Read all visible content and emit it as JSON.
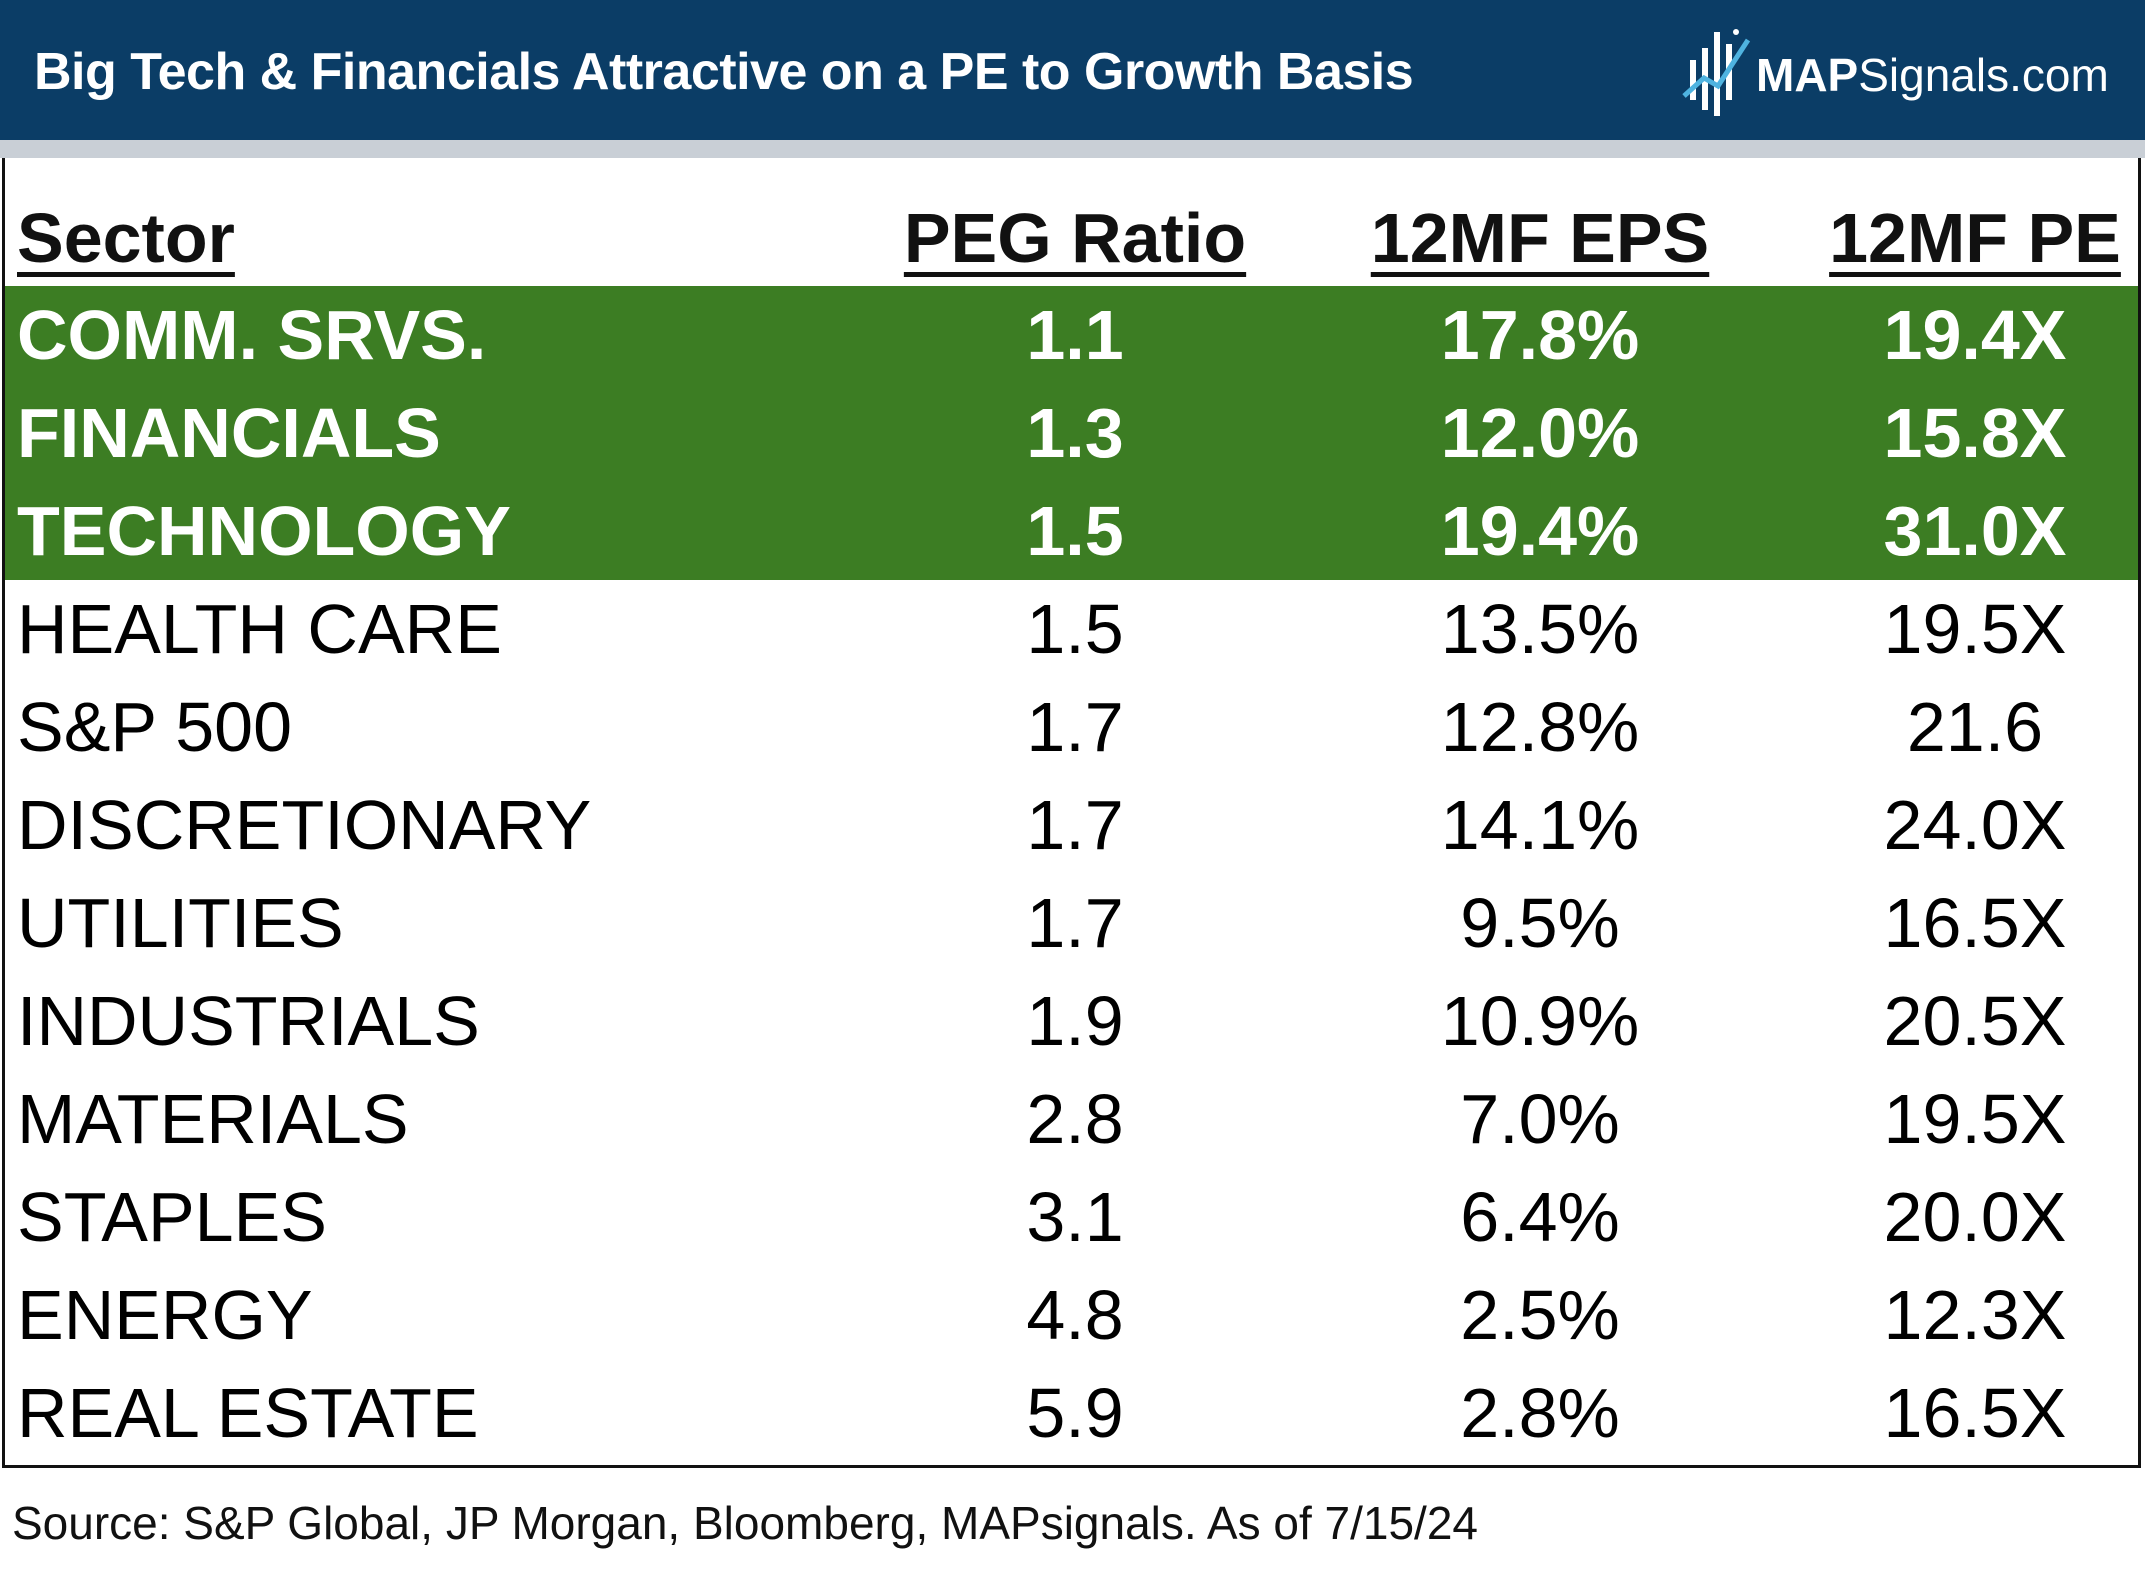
{
  "header": {
    "title": "Big Tech & Financials Attractive on a PE to Growth Basis",
    "logo_text_bold": "MAP",
    "logo_text_rest": "Signals.com",
    "bg_color": "#0b3d66"
  },
  "colors": {
    "highlight": "#3c7d23",
    "text": "#111111"
  },
  "chart_data": {
    "type": "table",
    "title": "Big Tech & Financials Attractive on a PE to Growth Basis",
    "columns": [
      "Sector",
      "PEG Ratio",
      "12MF EPS",
      "12MF PE"
    ],
    "rows": [
      {
        "sector": "COMM. SRVS.",
        "peg": "1.1",
        "eps": "17.8%",
        "pe": "19.4X",
        "highlight": true
      },
      {
        "sector": "FINANCIALS",
        "peg": "1.3",
        "eps": "12.0%",
        "pe": "15.8X",
        "highlight": true
      },
      {
        "sector": "TECHNOLOGY",
        "peg": "1.5",
        "eps": "19.4%",
        "pe": "31.0X",
        "highlight": true
      },
      {
        "sector": "HEALTH CARE",
        "peg": "1.5",
        "eps": "13.5%",
        "pe": "19.5X",
        "highlight": false
      },
      {
        "sector": "S&P 500",
        "peg": "1.7",
        "eps": "12.8%",
        "pe": "21.6",
        "highlight": false
      },
      {
        "sector": "DISCRETIONARY",
        "peg": "1.7",
        "eps": "14.1%",
        "pe": "24.0X",
        "highlight": false
      },
      {
        "sector": "UTILITIES",
        "peg": "1.7",
        "eps": "9.5%",
        "pe": "16.5X",
        "highlight": false
      },
      {
        "sector": "INDUSTRIALS",
        "peg": "1.9",
        "eps": "10.9%",
        "pe": "20.5X",
        "highlight": false
      },
      {
        "sector": "MATERIALS",
        "peg": "2.8",
        "eps": "7.0%",
        "pe": "19.5X",
        "highlight": false
      },
      {
        "sector": "STAPLES",
        "peg": "3.1",
        "eps": "6.4%",
        "pe": "20.0X",
        "highlight": false
      },
      {
        "sector": "ENERGY",
        "peg": "4.8",
        "eps": "2.5%",
        "pe": "12.3X",
        "highlight": false
      },
      {
        "sector": "REAL ESTATE",
        "peg": "5.9",
        "eps": "2.8%",
        "pe": "16.5X",
        "highlight": false
      }
    ],
    "source": "Source: S&P Global, JP Morgan, Bloomberg, MAPsignals. As of 7/15/24"
  }
}
